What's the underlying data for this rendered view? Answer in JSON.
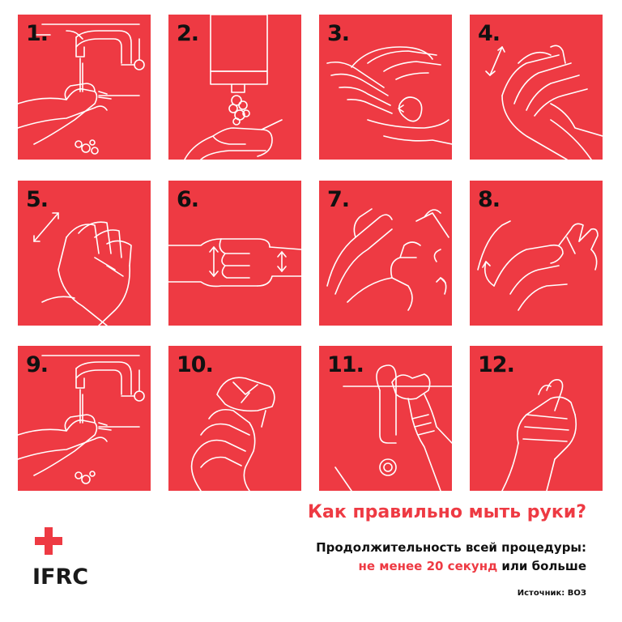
{
  "steps": [
    {
      "number": "1.",
      "icon": "wet-hands-under-tap-icon"
    },
    {
      "number": "2.",
      "icon": "soap-dispenser-icon"
    },
    {
      "number": "3.",
      "icon": "rub-palms-icon"
    },
    {
      "number": "4.",
      "icon": "back-of-hands-icon"
    },
    {
      "number": "5.",
      "icon": "interlaced-fingers-icon"
    },
    {
      "number": "6.",
      "icon": "interlocked-fingers-icon"
    },
    {
      "number": "7.",
      "icon": "rotational-thumb-rub-icon"
    },
    {
      "number": "8.",
      "icon": "fingertips-in-palm-icon"
    },
    {
      "number": "9.",
      "icon": "rinse-hands-icon"
    },
    {
      "number": "10.",
      "icon": "dry-with-towel-icon"
    },
    {
      "number": "11.",
      "icon": "turn-off-tap-with-towel-icon"
    },
    {
      "number": "12.",
      "icon": "clean-hand-heart-icon"
    }
  ],
  "brand": {
    "wordmark": "IFRC",
    "color": "#ee3a43"
  },
  "title": "Как правильно мыть руки?",
  "duration": {
    "line1": "Продолжительность всей процедуры:",
    "highlight": "не менее 20 секунд",
    "rest": " или больше"
  },
  "source": "Источник: ВОЗ",
  "colors": {
    "tile": "#ee3a43",
    "accent": "#ee3a43",
    "text": "#111111",
    "background": "#ffffff"
  }
}
